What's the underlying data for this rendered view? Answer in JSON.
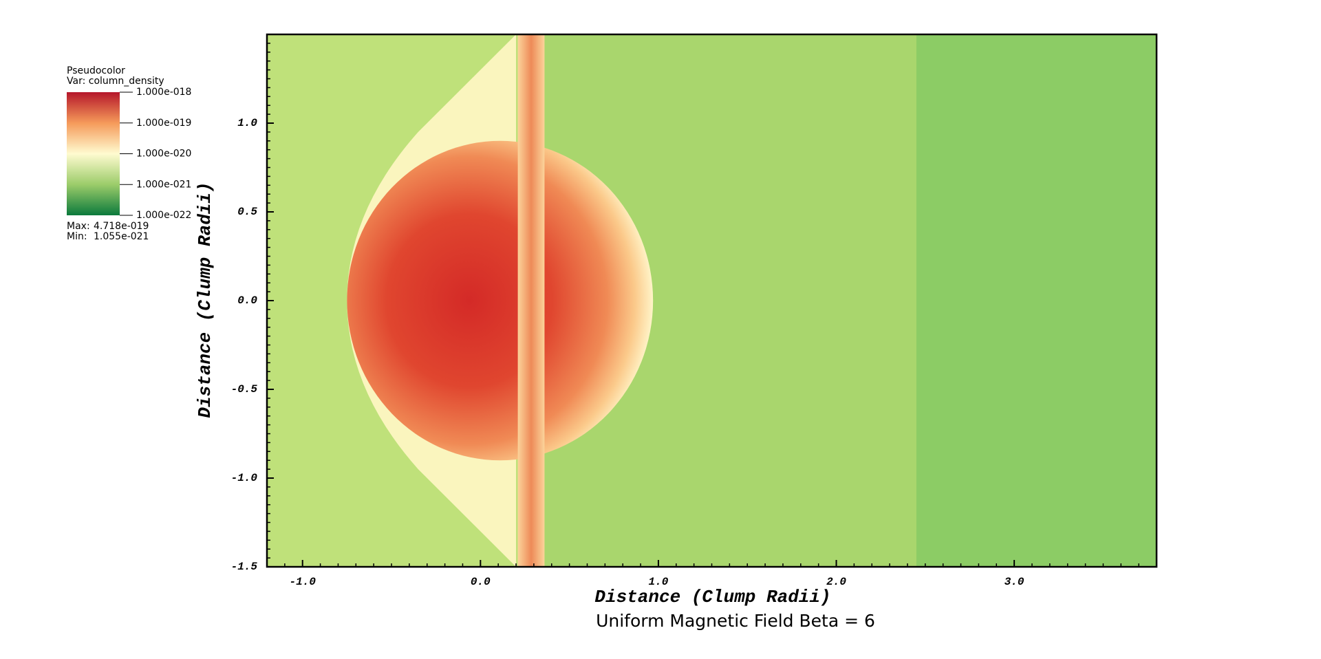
{
  "chart_data": {
    "type": "pseudocolor",
    "title": "Uniform Magnetic Field Beta = 6",
    "x_label": "Distance (Clump Radii)",
    "y_label": "Distance (Clump Radii)",
    "xlim": [
      -1.2,
      3.8
    ],
    "ylim": [
      -1.5,
      1.5
    ],
    "xticks": [
      {
        "value": -1,
        "label": "-1.0"
      },
      {
        "value": 0,
        "label": "0.0"
      },
      {
        "value": 1,
        "label": "1.0"
      },
      {
        "value": 2,
        "label": "2.0"
      },
      {
        "value": 3,
        "label": "3.0"
      }
    ],
    "yticks": [
      {
        "value": 1,
        "label": "1.0"
      },
      {
        "value": 0.5,
        "label": "0.5"
      },
      {
        "value": 0,
        "label": "0.0"
      },
      {
        "value": -0.5,
        "label": "-0.5"
      },
      {
        "value": -1,
        "label": "-1.0"
      },
      {
        "value": -1.5,
        "label": "-1.5"
      }
    ],
    "legend": {
      "plot_name": "Pseudocolor",
      "variable": "Var: column_density",
      "log": true,
      "clim": [
        1e-22,
        1e-18
      ],
      "ticks": [
        {
          "value": 1e-18,
          "label": "1.000e-018"
        },
        {
          "value": 1e-19,
          "label": "1.000e-019"
        },
        {
          "value": 1e-20,
          "label": "1.000e-020"
        },
        {
          "value": 1e-21,
          "label": "1.000e-021"
        },
        {
          "value": 1e-22,
          "label": "1.000e-022"
        }
      ],
      "max_text": "Max:",
      "max": {
        "value": 4.718e-19,
        "label": "4.718e-019"
      },
      "min_text": "Min:",
      "min": {
        "value": 1.055e-21,
        "label": "1.055e-021"
      }
    }
  }
}
